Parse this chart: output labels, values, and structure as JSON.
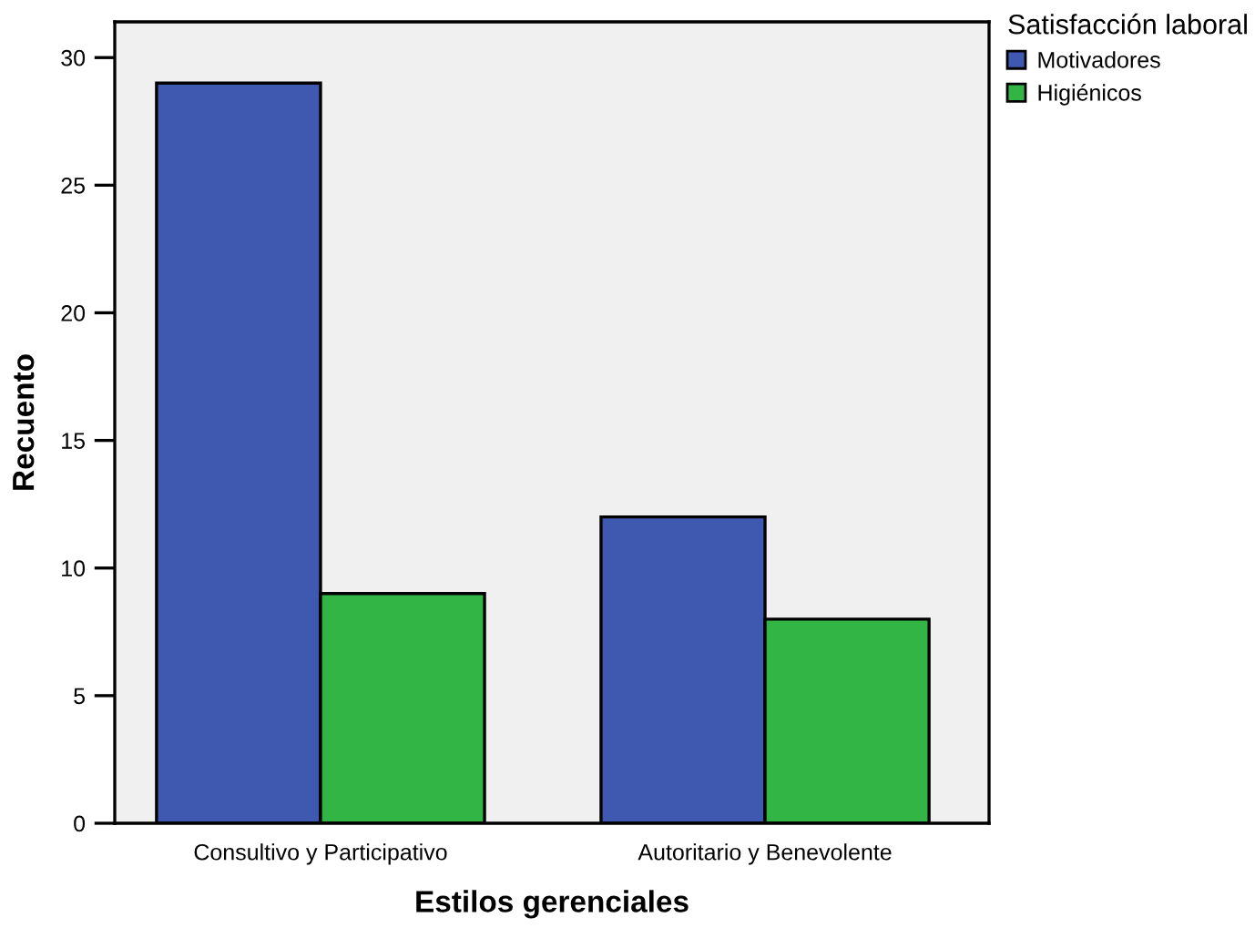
{
  "chart_data": {
    "type": "bar",
    "xlabel": "Estilos gerenciales",
    "ylabel": "Recuento",
    "legend_title": "Satisfacción laboral",
    "categories": [
      "Consultivo y Participativo",
      "Autoritario y Benevolente"
    ],
    "series": [
      {
        "name": "Motivadores",
        "color": "#3f58b0",
        "values": [
          29,
          12
        ]
      },
      {
        "name": "Higiénicos",
        "color": "#33b545",
        "values": [
          9,
          8
        ]
      }
    ],
    "ylim": [
      0,
      31.4
    ],
    "yticks": [
      0,
      5,
      10,
      15,
      20,
      25,
      30
    ],
    "grid": false,
    "legend": "top right"
  }
}
